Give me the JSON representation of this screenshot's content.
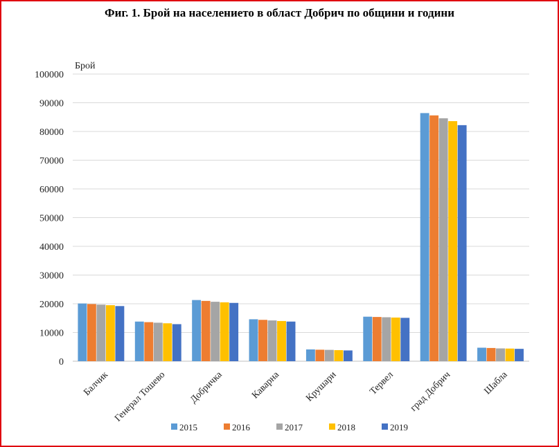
{
  "chart_data": {
    "type": "bar",
    "title": "Фиг. 1. Брой на населението в област Добрич по общини и години",
    "ylabel": "Брой",
    "xlabel": "",
    "ylim": [
      0,
      100000
    ],
    "yticks": [
      "0",
      "10000",
      "20000",
      "30000",
      "40000",
      "50000",
      "60000",
      "70000",
      "80000",
      "90000",
      "100000"
    ],
    "grid": true,
    "legend_position": "bottom",
    "categories": [
      "Балчик",
      "Генерал Тошево",
      "Добричка",
      "Каварна",
      "Крушари",
      "Тервел",
      "град Добрич",
      "Шабла"
    ],
    "series": [
      {
        "name": "2015",
        "color": "#5b9bd5",
        "values": [
          20100,
          13800,
          21300,
          14600,
          4100,
          15500,
          86400,
          4700
        ]
      },
      {
        "name": "2016",
        "color": "#ed7d31",
        "values": [
          19900,
          13600,
          21000,
          14400,
          4000,
          15400,
          85600,
          4600
        ]
      },
      {
        "name": "2017",
        "color": "#a5a5a5",
        "values": [
          19700,
          13400,
          20700,
          14200,
          3950,
          15300,
          84600,
          4450
        ]
      },
      {
        "name": "2018",
        "color": "#ffc000",
        "values": [
          19500,
          13200,
          20500,
          14000,
          3850,
          15200,
          83600,
          4400
        ]
      },
      {
        "name": "2019",
        "color": "#4472c4",
        "values": [
          19200,
          12900,
          20300,
          13800,
          3750,
          15100,
          82200,
          4300
        ]
      }
    ]
  }
}
